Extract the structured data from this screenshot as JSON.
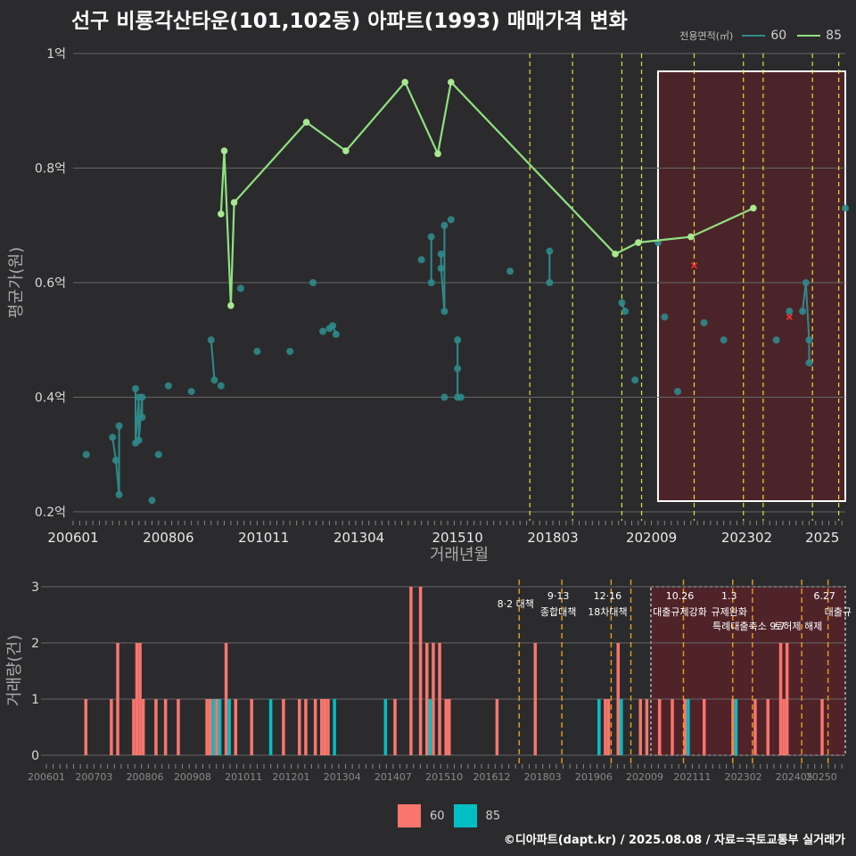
{
  "title": "선구 비룡각산타운(101,102동) 아파트(1993) 매매가격 변화",
  "legend": {
    "title": "전용면적(㎡)",
    "items": [
      {
        "name": "60",
        "color": "#2f8a8a"
      },
      {
        "name": "85",
        "color": "#90e080"
      }
    ]
  },
  "bottom_legend": [
    {
      "name": "60",
      "color": "#f8766d"
    },
    {
      "name": "85",
      "color": "#00bfc4"
    }
  ],
  "copyright": "©디아파트(dapt.kr) / 2025.08.08 / 자료=국토교통부 실거래가",
  "chart_data": [
    {
      "type": "line",
      "xlabel": "거래년월",
      "ylabel": "평균가(원)",
      "ylim": [
        0.2,
        1.0
      ],
      "y_ticks": [
        {
          "v": 0.2,
          "label": "0.2억"
        },
        {
          "v": 0.4,
          "label": "0.4억"
        },
        {
          "v": 0.6,
          "label": "0.6억"
        },
        {
          "v": 0.8,
          "label": "0.8억"
        },
        {
          "v": 1.0,
          "label": "1억"
        }
      ],
      "x_range": [
        "2006-01",
        "2025-08"
      ],
      "x_ticks": [
        "200601",
        "200806",
        "201011",
        "201304",
        "201510",
        "201803",
        "202009",
        "202302",
        "2025"
      ],
      "highlight": {
        "from": "2020-11",
        "to": "2025-08"
      },
      "policy_lines": [
        "2017-08",
        "2018-09",
        "2019-12",
        "2020-06",
        "2021-10",
        "2023-01",
        "2023-07",
        "2024-10",
        "2025-06"
      ],
      "series": [
        {
          "name": "60",
          "points": [
            [
              "2006-05",
              0.3
            ],
            [
              "2007-01",
              0.33
            ],
            [
              "2007-02",
              0.29
            ],
            [
              "2007-03",
              0.23
            ],
            [
              "2007-03",
              0.35
            ],
            [
              "2007-08",
              0.415
            ],
            [
              "2007-08",
              0.32
            ],
            [
              "2007-09",
              0.4
            ],
            [
              "2007-09",
              0.325
            ],
            [
              "2007-10",
              0.4
            ],
            [
              "2007-10",
              0.365
            ],
            [
              "2008-01",
              0.22
            ],
            [
              "2008-03",
              0.3
            ],
            [
              "2008-06",
              0.42
            ],
            [
              "2009-01",
              0.41
            ],
            [
              "2009-07",
              0.5
            ],
            [
              "2009-08",
              0.43
            ],
            [
              "2009-10",
              0.42
            ],
            [
              "2010-04",
              0.59
            ],
            [
              "2010-09",
              0.48
            ],
            [
              "2011-07",
              0.48
            ],
            [
              "2012-02",
              0.6
            ],
            [
              "2012-05",
              0.515
            ],
            [
              "2012-07",
              0.52
            ],
            [
              "2012-08",
              0.525
            ],
            [
              "2012-09",
              0.51
            ],
            [
              "2014-11",
              0.64
            ],
            [
              "2015-02",
              0.6
            ],
            [
              "2015-02",
              0.68
            ],
            [
              "2015-05",
              0.65
            ],
            [
              "2015-05",
              0.625
            ],
            [
              "2015-06",
              0.55
            ],
            [
              "2015-06",
              0.7
            ],
            [
              "2015-06",
              0.4
            ],
            [
              "2015-08",
              0.71
            ],
            [
              "2015-10",
              0.5
            ],
            [
              "2015-10",
              0.45
            ],
            [
              "2015-10",
              0.4
            ],
            [
              "2015-11",
              0.4
            ],
            [
              "2017-02",
              0.62
            ],
            [
              "2018-02",
              0.655
            ],
            [
              "2018-02",
              0.6
            ],
            [
              "2019-12",
              0.565
            ],
            [
              "2020-01",
              0.55
            ],
            [
              "2020-04",
              0.43
            ],
            [
              "2020-11",
              0.67
            ],
            [
              "2021-01",
              0.54
            ],
            [
              "2021-05",
              0.41
            ],
            [
              "2022-01",
              0.53
            ],
            [
              "2022-07",
              0.5
            ],
            [
              "2023-11",
              0.5
            ],
            [
              "2024-03",
              0.55
            ],
            [
              "2024-07",
              0.55
            ],
            [
              "2024-08",
              0.6
            ],
            [
              "2024-09",
              0.5
            ],
            [
              "2024-09",
              0.46
            ],
            [
              "2025-08",
              0.73
            ]
          ]
        },
        {
          "name": "85",
          "points": [
            [
              "2009-10",
              0.72
            ],
            [
              "2009-11",
              0.83
            ],
            [
              "2010-01",
              0.56
            ],
            [
              "2010-02",
              0.74
            ],
            [
              "2011-12",
              0.88
            ],
            [
              "2012-12",
              0.83
            ],
            [
              "2014-06",
              0.95
            ],
            [
              "2015-04",
              0.825
            ],
            [
              "2015-08",
              0.95
            ],
            [
              "2019-10",
              0.65
            ],
            [
              "2020-05",
              0.67
            ],
            [
              "2021-09",
              0.68
            ],
            [
              "2023-04",
              0.73
            ]
          ]
        }
      ],
      "cancelled_marks": [
        [
          "2021-10",
          0.63
        ],
        [
          "2024-03",
          0.54
        ]
      ]
    },
    {
      "type": "bar",
      "ylabel": "거래량(건)",
      "ylim": [
        0,
        3
      ],
      "y_ticks": [
        0,
        1,
        2,
        3
      ],
      "x_ticks": [
        "200601",
        "200703",
        "200806",
        "200908",
        "201011",
        "201201",
        "201304",
        "201407",
        "201510",
        "201612",
        "201803",
        "201906",
        "202009",
        "202111",
        "202302",
        "202405",
        "20250"
      ],
      "policies": [
        {
          "date": "2017-08",
          "date_label": "",
          "name": "8·2 대책"
        },
        {
          "date": "2018-09",
          "date_label": "9·13",
          "name": "종합대책"
        },
        {
          "date": "2019-12",
          "date_label": "12·16",
          "name": "18차대책"
        },
        {
          "date": "2020-06",
          "date_label": "",
          "name": ""
        },
        {
          "date": "2021-10",
          "date_label": "10.26",
          "name": "대출규제강화"
        },
        {
          "date": "2023-01",
          "date_label": "1.3",
          "name": "규제완화"
        },
        {
          "date": "2023-07",
          "date_label": "",
          "name": "특례대출축소 9.7"
        },
        {
          "date": "2024-10",
          "date_label": "",
          "name": "토허제 해제"
        },
        {
          "date": "2025-06",
          "date_label": "6.27",
          "name": "대출규"
        }
      ],
      "series": [
        {
          "name": "60",
          "bars": [
            [
              "2006-05",
              1
            ],
            [
              "2007-01",
              1
            ],
            [
              "2007-03",
              2
            ],
            [
              "2007-08",
              1
            ],
            [
              "2007-09",
              2
            ],
            [
              "2007-10",
              2
            ],
            [
              "2007-11",
              1
            ],
            [
              "2008-03",
              1
            ],
            [
              "2008-06",
              1
            ],
            [
              "2008-10",
              1
            ],
            [
              "2009-07",
              1
            ],
            [
              "2009-08",
              1
            ],
            [
              "2009-10",
              1
            ],
            [
              "2009-11",
              1
            ],
            [
              "2010-01",
              2
            ],
            [
              "2010-04",
              1
            ],
            [
              "2010-09",
              1
            ],
            [
              "2011-07",
              1
            ],
            [
              "2011-12",
              1
            ],
            [
              "2012-02",
              1
            ],
            [
              "2012-05",
              1
            ],
            [
              "2012-07",
              1
            ],
            [
              "2012-08",
              1
            ],
            [
              "2012-09",
              1
            ],
            [
              "2014-06",
              1
            ],
            [
              "2014-11",
              3
            ],
            [
              "2015-02",
              3
            ],
            [
              "2015-04",
              2
            ],
            [
              "2015-06",
              2
            ],
            [
              "2015-08",
              2
            ],
            [
              "2015-10",
              1
            ],
            [
              "2015-11",
              1
            ],
            [
              "2017-02",
              1
            ],
            [
              "2018-02",
              2
            ],
            [
              "2019-10",
              1
            ],
            [
              "2019-12",
              1
            ],
            [
              "2020-01",
              1
            ],
            [
              "2020-04",
              2
            ],
            [
              "2020-11",
              1
            ],
            [
              "2021-01",
              1
            ],
            [
              "2021-05",
              1
            ],
            [
              "2021-09",
              1
            ],
            [
              "2022-01",
              1
            ],
            [
              "2022-07",
              1
            ],
            [
              "2023-04",
              1
            ],
            [
              "2023-11",
              1
            ],
            [
              "2024-03",
              1
            ],
            [
              "2024-07",
              2
            ],
            [
              "2024-08",
              1
            ],
            [
              "2024-09",
              2
            ],
            [
              "2025-08",
              1
            ]
          ]
        },
        {
          "name": "85",
          "bars": [
            [
              "2009-09",
              1
            ],
            [
              "2009-11",
              1
            ],
            [
              "2010-02",
              1
            ],
            [
              "2011-03",
              1
            ],
            [
              "2012-11",
              1
            ],
            [
              "2014-03",
              1
            ],
            [
              "2015-05",
              1
            ],
            [
              "2019-10",
              1
            ],
            [
              "2020-05",
              1
            ],
            [
              "2022-02",
              1
            ],
            [
              "2023-05",
              1
            ]
          ]
        }
      ]
    }
  ]
}
